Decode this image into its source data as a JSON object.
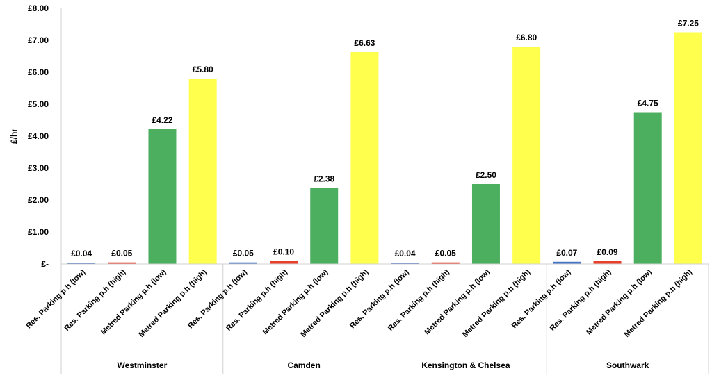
{
  "chart_data": {
    "type": "bar",
    "ylabel": "£/hr",
    "ylim": [
      0,
      8
    ],
    "y_ticks": [
      {
        "value": 0,
        "label": "£-"
      },
      {
        "value": 1,
        "label": "£1.00"
      },
      {
        "value": 2,
        "label": "£2.00"
      },
      {
        "value": 3,
        "label": "£3.00"
      },
      {
        "value": 4,
        "label": "£4.00"
      },
      {
        "value": 5,
        "label": "£5.00"
      },
      {
        "value": 6,
        "label": "£6.00"
      },
      {
        "value": 7,
        "label": "£7.00"
      },
      {
        "value": 8,
        "label": "£8.00"
      }
    ],
    "grid": false,
    "legend": "none",
    "series_colors": {
      "Res. Parking p.h (low)": "#4472C4",
      "Res. Parking p.h (high)": "#E8402B",
      "Metred Parking p.h (low)": "#4CAF5F",
      "Metred Parking p.h (high)": "#FFFF4D"
    },
    "groups": [
      {
        "name": "Westminster",
        "bars": [
          {
            "category": "Res. Parking p.h (low)",
            "value": 0.04,
            "label": "£0.04"
          },
          {
            "category": "Res. Parking p.h (high)",
            "value": 0.05,
            "label": "£0.05"
          },
          {
            "category": "Metred Parking p.h (low)",
            "value": 4.22,
            "label": "£4.22"
          },
          {
            "category": "Metred Parking p.h (high)",
            "value": 5.8,
            "label": "£5.80"
          }
        ]
      },
      {
        "name": "Camden",
        "bars": [
          {
            "category": "Res. Parking p.h (low)",
            "value": 0.05,
            "label": "£0.05"
          },
          {
            "category": "Res. Parking p.h (high)",
            "value": 0.1,
            "label": "£0.10"
          },
          {
            "category": "Metred Parking p.h (low)",
            "value": 2.38,
            "label": "£2.38"
          },
          {
            "category": "Metred Parking p.h (high)",
            "value": 6.63,
            "label": "£6.63"
          }
        ]
      },
      {
        "name": "Kensington & Chelsea",
        "bars": [
          {
            "category": "Res. Parking p.h (low)",
            "value": 0.04,
            "label": "£0.04"
          },
          {
            "category": "Res. Parking p.h (high)",
            "value": 0.05,
            "label": "£0.05"
          },
          {
            "category": "Metred Parking p.h (low)",
            "value": 2.5,
            "label": "£2.50"
          },
          {
            "category": "Metred Parking p.h (high)",
            "value": 6.8,
            "label": "£6.80"
          }
        ]
      },
      {
        "name": "Southwark",
        "bars": [
          {
            "category": "Res. Parking p.h (low)",
            "value": 0.07,
            "label": "£0.07"
          },
          {
            "category": "Res. Parking p.h (high)",
            "value": 0.09,
            "label": "£0.09"
          },
          {
            "category": "Metred Parking p.h (low)",
            "value": 4.75,
            "label": "£4.75"
          },
          {
            "category": "Metred Parking p.h (high)",
            "value": 7.25,
            "label": "£7.25"
          }
        ]
      }
    ]
  }
}
